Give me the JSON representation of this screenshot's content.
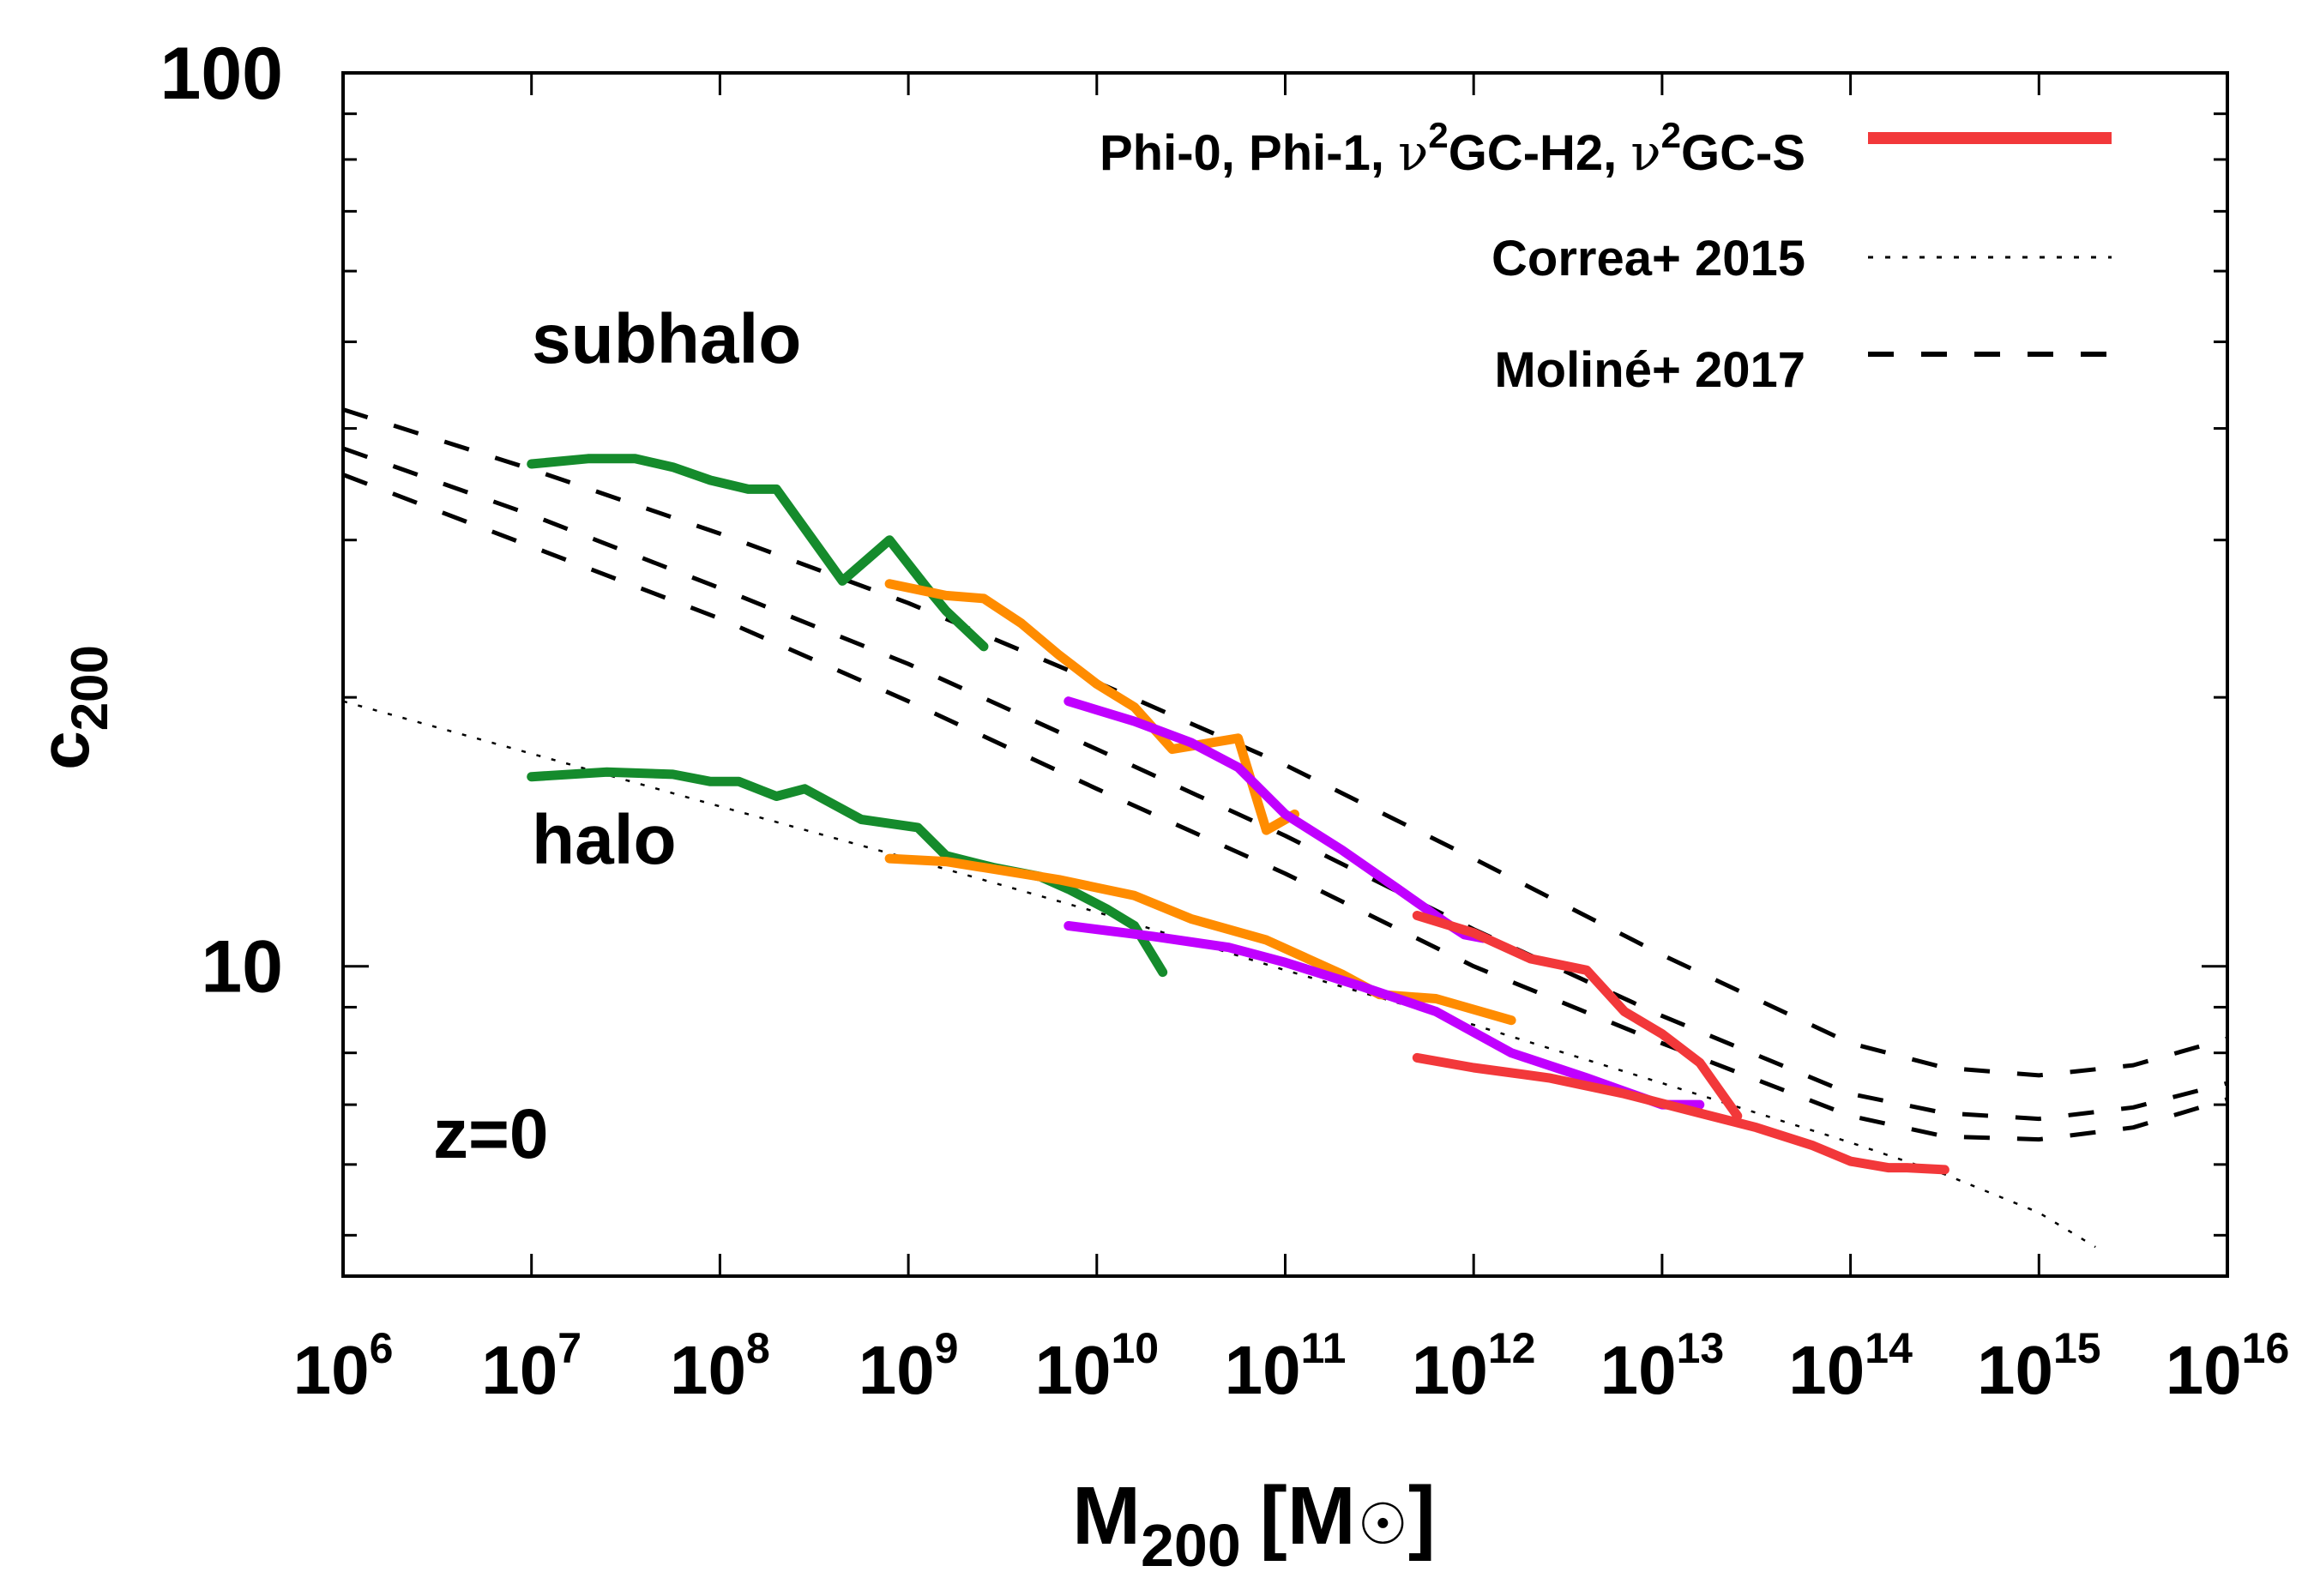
{
  "chart_data": {
    "type": "line",
    "xscale": "log",
    "yscale": "log",
    "xlim_exp": [
      6,
      16
    ],
    "ylim": [
      4.5,
      100
    ],
    "xlabel": {
      "main": "M",
      "sub": "200",
      "unit": "[M",
      "sun": "☉",
      "close": "]"
    },
    "ylabel": {
      "main": "c",
      "sub": "200"
    },
    "x_ticks": [
      {
        "base": "10",
        "exp": "6"
      },
      {
        "base": "10",
        "exp": "7"
      },
      {
        "base": "10",
        "exp": "8"
      },
      {
        "base": "10",
        "exp": "9"
      },
      {
        "base": "10",
        "exp": "10"
      },
      {
        "base": "10",
        "exp": "11"
      },
      {
        "base": "10",
        "exp": "12"
      },
      {
        "base": "10",
        "exp": "13"
      },
      {
        "base": "10",
        "exp": "14"
      },
      {
        "base": "10",
        "exp": "15"
      },
      {
        "base": "10",
        "exp": "16"
      }
    ],
    "y_ticks": [
      {
        "value": 10,
        "label": "10"
      },
      {
        "value": 100,
        "label": "100"
      }
    ],
    "annotations": {
      "subhalo": "subhalo",
      "halo": "halo",
      "redshift": "z=0"
    },
    "legend": {
      "position": "top-right",
      "entries": [
        {
          "label_parts": [
            "Phi-0, Phi-1, ",
            "ν",
            "2",
            "GC-H2, ",
            "ν",
            "2",
            "GC-S"
          ],
          "style": "solid",
          "color": "#f2383a"
        },
        {
          "label_parts": [
            "Correa+ 2015"
          ],
          "style": "dotted",
          "color": "#000000"
        },
        {
          "label_parts": [
            "Moliné+ 2017"
          ],
          "style": "dashed",
          "color": "#000000"
        }
      ]
    },
    "colors": {
      "Phi-0": "#158b2c",
      "Phi-1": "#ff8c00",
      "nu2GC-H2": "#c000ff",
      "nu2GC-S": "#f2383a",
      "model": "#000000"
    },
    "series": [
      {
        "name": "Phi-0 subhalo",
        "group": "Phi-0",
        "logm": [
          7.0,
          7.3,
          7.55,
          7.75,
          7.95,
          8.15,
          8.3,
          8.65,
          8.9,
          9.1,
          9.2,
          9.4
        ],
        "c": [
          36.5,
          37.0,
          37.0,
          36.2,
          35.0,
          34.2,
          34.2,
          27.0,
          30.0,
          26.5,
          25.0,
          22.8
        ]
      },
      {
        "name": "Phi-0 halo",
        "group": "Phi-0",
        "logm": [
          7.0,
          7.4,
          7.75,
          7.95,
          8.1,
          8.3,
          8.45,
          8.75,
          9.05,
          9.2,
          9.45,
          9.7,
          9.85,
          10.05,
          10.2,
          10.35
        ],
        "c": [
          16.3,
          16.5,
          16.4,
          16.1,
          16.1,
          15.5,
          15.8,
          14.6,
          14.3,
          13.3,
          12.9,
          12.6,
          12.2,
          11.6,
          11.1,
          9.85
        ]
      },
      {
        "name": "Phi-1 subhalo",
        "group": "Phi-1",
        "logm": [
          8.9,
          9.2,
          9.4,
          9.6,
          9.8,
          10.0,
          10.2,
          10.4,
          10.75,
          10.9,
          11.05
        ],
        "c": [
          26.8,
          26.0,
          25.8,
          24.2,
          22.3,
          20.7,
          19.5,
          17.5,
          18.0,
          14.2,
          14.8
        ]
      },
      {
        "name": "Phi-1 halo",
        "group": "Phi-1",
        "logm": [
          8.9,
          9.2,
          9.5,
          9.8,
          10.2,
          10.5,
          10.9,
          11.3,
          11.5,
          11.8,
          12.2
        ],
        "c": [
          13.2,
          13.1,
          12.8,
          12.5,
          12.0,
          11.3,
          10.7,
          9.8,
          9.3,
          9.2,
          8.7
        ]
      },
      {
        "name": "nu2GC-H2 subhalo",
        "group": "nu2GC-H2",
        "logm": [
          9.85,
          10.2,
          10.5,
          10.75,
          11.0,
          11.3,
          11.6,
          11.85,
          11.95,
          12.05
        ],
        "c": [
          19.8,
          18.8,
          17.8,
          16.7,
          14.8,
          13.5,
          12.2,
          11.2,
          10.85,
          10.75
        ]
      },
      {
        "name": "nu2GC-H2 halo",
        "group": "nu2GC-H2",
        "logm": [
          9.85,
          10.3,
          10.7,
          11.0,
          11.4,
          11.8,
          12.2,
          12.6,
          13.0,
          13.1,
          13.2
        ],
        "c": [
          11.1,
          10.8,
          10.5,
          10.1,
          9.5,
          8.9,
          8.0,
          7.5,
          7.0,
          7.0,
          7.0
        ]
      },
      {
        "name": "nu2GC-S subhalo",
        "group": "nu2GC-S",
        "logm": [
          11.7,
          12.0,
          12.3,
          12.6,
          12.8,
          13.0,
          13.2,
          13.4
        ],
        "c": [
          11.4,
          10.9,
          10.2,
          9.9,
          8.9,
          8.4,
          7.8,
          6.8
        ]
      },
      {
        "name": "nu2GC-S halo",
        "group": "nu2GC-S",
        "logm": [
          11.7,
          12.0,
          12.4,
          12.8,
          13.2,
          13.5,
          13.8,
          14.0,
          14.2,
          14.3,
          14.5
        ],
        "c": [
          7.9,
          7.7,
          7.5,
          7.2,
          6.85,
          6.6,
          6.3,
          6.05,
          5.95,
          5.95,
          5.92
        ]
      },
      {
        "name": "Correa+ 2015",
        "group": "model",
        "style": "dotted",
        "logm": [
          6.0,
          7.0,
          8.0,
          9.0,
          10.0,
          11.0,
          12.0,
          13.0,
          14.0,
          14.5,
          15.0,
          15.3
        ],
        "c": [
          19.8,
          17.3,
          15.1,
          13.2,
          11.5,
          9.9,
          8.6,
          7.4,
          6.35,
          5.85,
          5.3,
          4.85
        ]
      },
      {
        "name": "Moliné+ 2017 a",
        "group": "model",
        "style": "dashed",
        "logm": [
          6.0,
          7.0,
          8.0,
          9.0,
          10.0,
          11.0,
          12.0,
          13.0,
          14.0,
          14.5,
          15.0,
          15.5,
          16.0
        ],
        "c": [
          42.0,
          36.0,
          30.5,
          25.5,
          20.8,
          16.8,
          13.2,
          10.3,
          8.2,
          7.7,
          7.55,
          7.75,
          8.3
        ]
      },
      {
        "name": "Moliné+ 2017 b",
        "group": "model",
        "style": "dashed",
        "logm": [
          6.0,
          7.0,
          8.0,
          9.0,
          10.0,
          11.0,
          12.0,
          13.0,
          14.0,
          14.5,
          15.0,
          15.5,
          16.0
        ],
        "c": [
          38.0,
          32.0,
          26.5,
          21.8,
          17.5,
          14.0,
          11.0,
          8.8,
          7.2,
          6.85,
          6.75,
          6.95,
          7.4
        ]
      },
      {
        "name": "Moliné+ 2017 c",
        "group": "model",
        "style": "dashed",
        "logm": [
          6.0,
          7.0,
          8.0,
          9.0,
          10.0,
          11.0,
          12.0,
          13.0,
          14.0,
          14.5,
          15.0,
          15.5,
          16.0
        ],
        "c": [
          35.5,
          29.5,
          24.5,
          19.8,
          15.8,
          12.7,
          10.0,
          8.2,
          6.8,
          6.45,
          6.4,
          6.6,
          7.1
        ]
      }
    ]
  }
}
